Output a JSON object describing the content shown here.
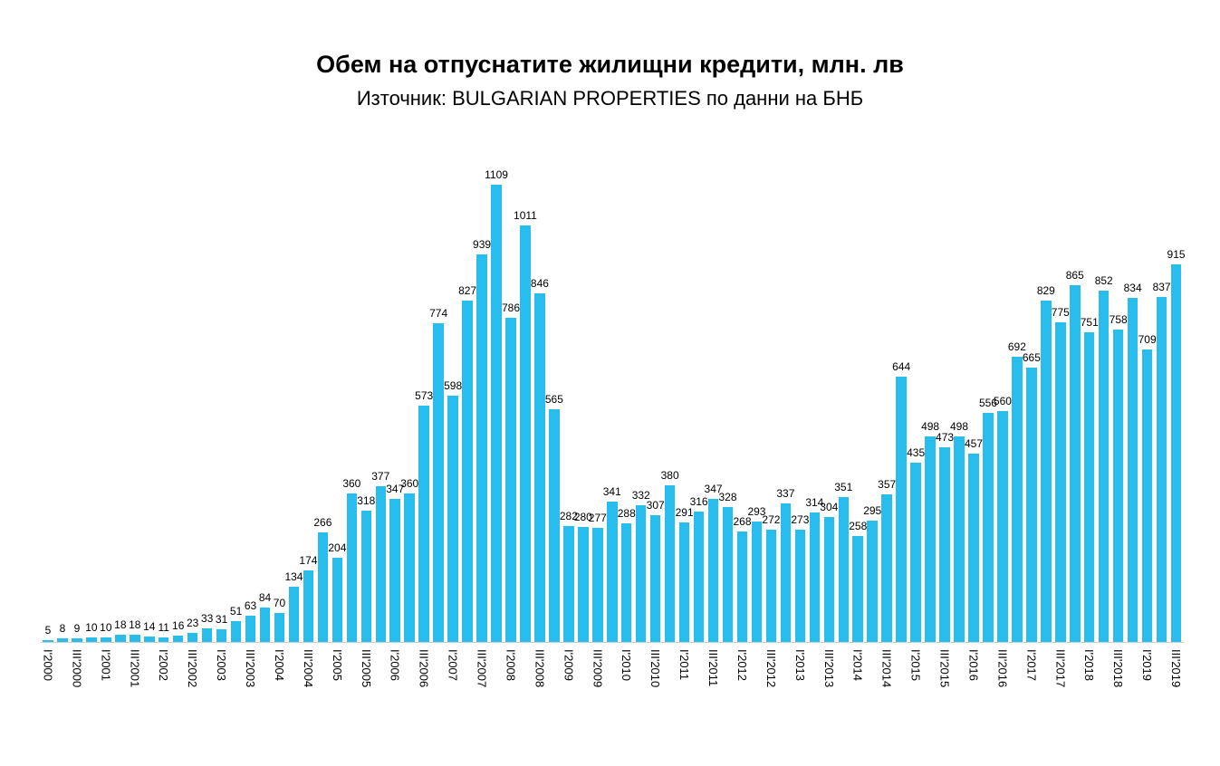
{
  "title": "Обем на отпуснатите жилищни кредити, млн. лв",
  "subtitle": "Източник: BULGARIAN PROPERTIES по данни на БНБ",
  "colors": {
    "bar": "#29bdee",
    "axis_line": "#d0d0d0",
    "text": "#000000",
    "background": "#ffffff"
  },
  "chart_data": {
    "type": "bar",
    "title": "Обем на отпуснатите жилищни кредити, млн. лв",
    "subtitle": "Източник: BULGARIAN PROPERTIES по данни на БНБ",
    "unit": "млн. лв",
    "xlabel": "",
    "ylabel": "",
    "ylim": [
      0,
      1200
    ],
    "y_axis_visible": false,
    "gridlines": false,
    "legend": "none",
    "data_labels_visible": true,
    "x_tick_rotation_deg": 90,
    "bar_color": "#29bdee",
    "categories": [
      "I'2000",
      "",
      "III'2000",
      "",
      "I'2001",
      "",
      "III'2001",
      "",
      "I'2002",
      "",
      "III'2002",
      "",
      "I'2003",
      "",
      "III'2003",
      "",
      "I'2004",
      "",
      "III'2004",
      "",
      "I'2005",
      "",
      "III'2005",
      "",
      "I'2006",
      "",
      "III'2006",
      "",
      "I'2007",
      "",
      "III'2007",
      "",
      "I'2008",
      "",
      "III'2008",
      "",
      "I'2009",
      "",
      "III'2009",
      "",
      "I'2010",
      "",
      "III'2010",
      "",
      "I'2011",
      "",
      "III'2011",
      "",
      "I'2012",
      "",
      "III'2012",
      "",
      "I'2013",
      "",
      "III'2013",
      "",
      "I'2014",
      "",
      "III'2014",
      "",
      "I'2015",
      "",
      "III'2015",
      "",
      "I'2016",
      "",
      "III'2016",
      "",
      "I'2017",
      "",
      "III'2017",
      "",
      "I'2018",
      "",
      "III'2018",
      "",
      "I'2019",
      "",
      "III'2019"
    ],
    "values": [
      5,
      8,
      9,
      10,
      10,
      18,
      18,
      14,
      11,
      16,
      23,
      33,
      31,
      51,
      63,
      84,
      70,
      134,
      174,
      266,
      204,
      360,
      318,
      377,
      347,
      360,
      573,
      774,
      598,
      827,
      939,
      1109,
      786,
      1011,
      846,
      565,
      282,
      280,
      277,
      341,
      288,
      332,
      307,
      380,
      291,
      316,
      347,
      328,
      268,
      293,
      272,
      337,
      273,
      314,
      304,
      351,
      258,
      295,
      357,
      644,
      435,
      498,
      473,
      498,
      457,
      556,
      560,
      692,
      665,
      829,
      775,
      865,
      751,
      852,
      758,
      834,
      709,
      837,
      915
    ]
  }
}
